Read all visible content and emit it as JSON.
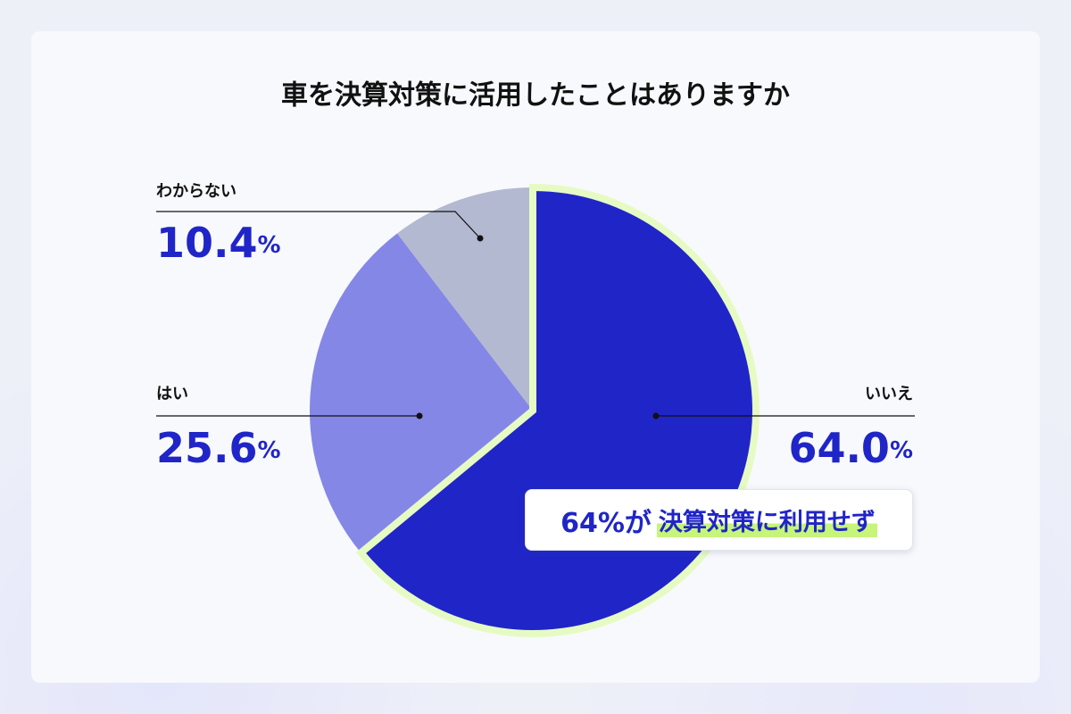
{
  "chart_data": {
    "type": "pie",
    "title": "車を決算対策に活用したことはありますか",
    "categories": [
      "いいえ",
      "はい",
      "わからない"
    ],
    "values": [
      64.0,
      25.6,
      10.4
    ],
    "value_labels": [
      "64.0%",
      "25.6%",
      "10.4%"
    ],
    "colors": [
      "#2025c8",
      "#8587e6",
      "#b3b9d0"
    ],
    "annotation": {
      "lead": "64%が",
      "highlight": "決算対策に利用せず"
    }
  }
}
